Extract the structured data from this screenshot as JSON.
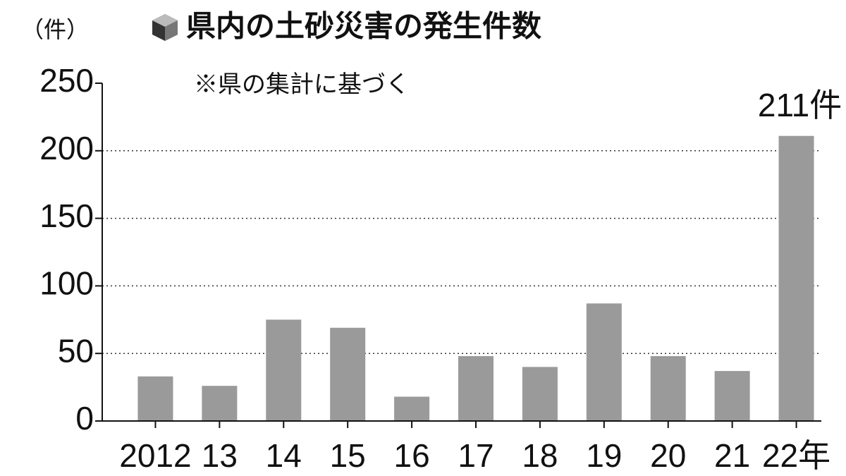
{
  "chart_data": {
    "type": "bar",
    "title": "県内の土砂災害の発生件数",
    "y_label": "（件）",
    "note": "※県の集計に基づく",
    "categories": [
      "2012",
      "13",
      "14",
      "15",
      "16",
      "17",
      "18",
      "19",
      "20",
      "21",
      "22年"
    ],
    "values": [
      33,
      26,
      75,
      69,
      18,
      48,
      40,
      87,
      48,
      37,
      211
    ],
    "value_labels": [
      null,
      null,
      null,
      null,
      null,
      null,
      null,
      null,
      null,
      null,
      "211件"
    ],
    "color": "#9a9a9a",
    "ylim": [
      0,
      250
    ],
    "yticks": [
      0,
      50,
      100,
      150,
      200,
      250
    ],
    "grid": true
  }
}
